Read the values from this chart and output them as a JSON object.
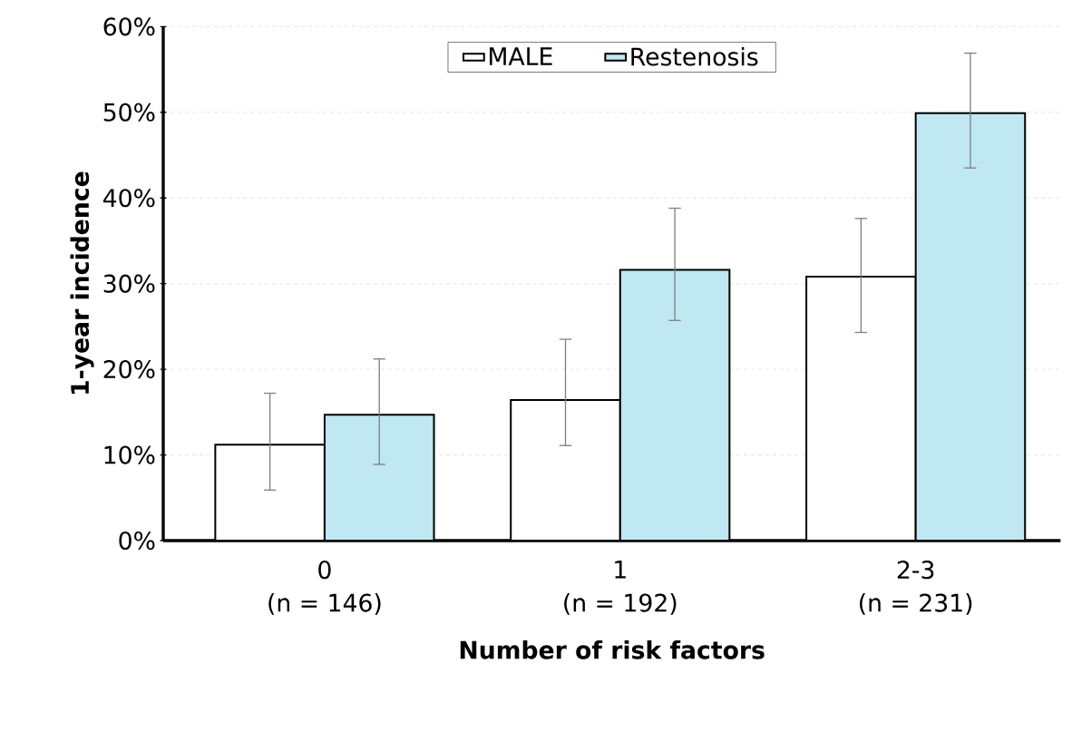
{
  "chart_data": {
    "type": "bar",
    "xlabel": "Number of risk factors",
    "ylabel": "1-year incidence",
    "categories": [
      "0",
      "1",
      "2-3"
    ],
    "series": [
      {
        "name": "MALE",
        "color": "#ffffff",
        "values": [
          11.2,
          16.4,
          30.8
        ],
        "errors": [
          [
            5.9,
            17.2
          ],
          [
            11.1,
            23.5
          ],
          [
            24.3,
            37.6
          ]
        ]
      },
      {
        "name": "Restenosis",
        "color": "#bfe8f2",
        "values": [
          14.7,
          31.6,
          49.9
        ],
        "errors": [
          [
            8.9,
            21.2
          ],
          [
            25.7,
            38.8
          ],
          [
            43.5,
            56.9
          ]
        ]
      }
    ],
    "annotations": [
      "(n = 146)",
      "(n = 192)",
      "(n = 231)"
    ],
    "ylim": [
      0,
      60
    ],
    "yticks": [
      {
        "value": 0,
        "label": "0%"
      },
      {
        "value": 10,
        "label": "10%"
      },
      {
        "value": 20,
        "label": "20%"
      },
      {
        "value": 30,
        "label": "30%"
      },
      {
        "value": 40,
        "label": "40%"
      },
      {
        "value": 50,
        "label": "50%"
      },
      {
        "value": 60,
        "label": "60%"
      }
    ],
    "grid": "y",
    "legend": "top"
  }
}
